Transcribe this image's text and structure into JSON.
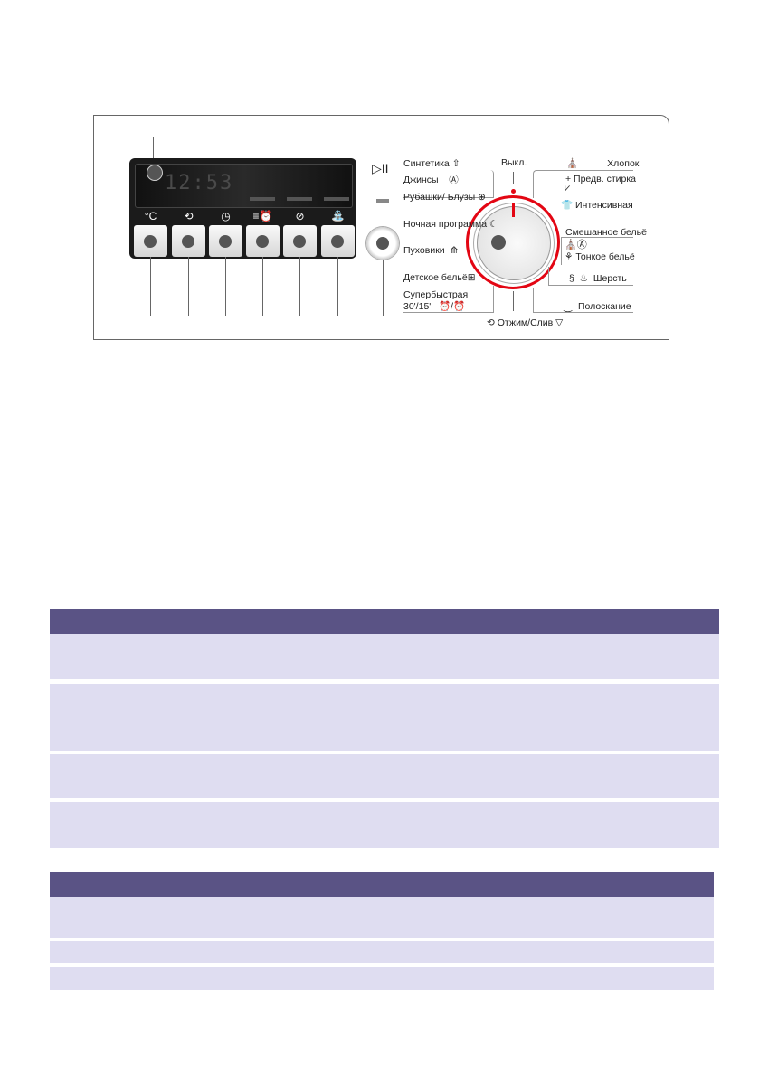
{
  "control_panel": {
    "display_time": "12:53",
    "button_icons": [
      "°C",
      "spin-icon",
      "clock-icon",
      "speed-alarm-icon",
      "stain-icon",
      "rinse-plus-icon"
    ],
    "start_pause_icon": "▷II",
    "dial_off_label": "Выкл.",
    "spin_drain_label": "Отжим/Слив",
    "programs_left": [
      "Синтетика",
      "Джинсы",
      "Рубашки/ Блузы",
      "Ночная программа",
      "Пуховики",
      "Детское бельё",
      "Суперьыстрая"
    ],
    "program_superfast": "Супербыстрая",
    "program_superfast_time": "30'/15'",
    "programs_right": [
      "Хлопок",
      "+ Предв. стирка",
      "Интенсивная",
      "Смешанное бельё",
      "Тонкое бельё",
      "Шерсть",
      "Полоскание"
    ],
    "accent_color": "#e30613"
  },
  "tables": {
    "header_color": "#5a5385",
    "row_color": "#dfddf1"
  }
}
